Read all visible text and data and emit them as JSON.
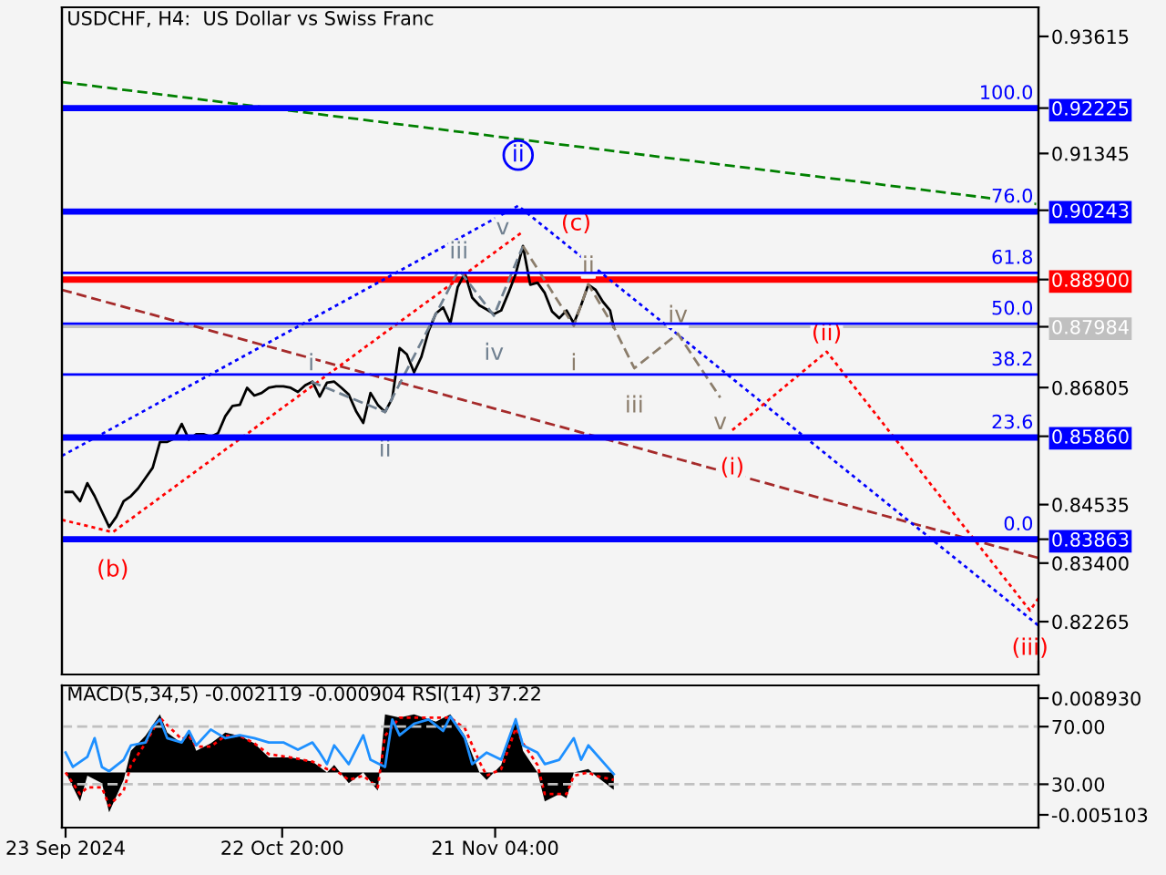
{
  "chart_data": [
    {
      "type": "line",
      "title": "USDCHF, H4:  US Dollar vs Swiss Franc",
      "xlim": [
        "2024-09-22T12:00",
        "2025-02-04T00:00"
      ],
      "ylim": [
        0.8124,
        0.9418
      ],
      "y2lim": [
        -31.37,
        123.39
      ],
      "yticks": [
        0.93615,
        0.91345,
        {
          "value": 0.92225,
          "label": "0.92225"
        },
        {
          "value": 0.90243,
          "label": "0.90243"
        },
        {
          "value": 0.889,
          "label": "0.88900"
        },
        {
          "value": 0.87984,
          "label": "0.87984"
        },
        0.86805,
        {
          "value": 0.8586,
          "label": "0.85860"
        },
        0.84535,
        {
          "value": 0.83863,
          "label": "0.83863"
        },
        {
          "value": 0.834,
          "label": "0.83400"
        },
        0.82265
      ],
      "tick_labels": "y",
      "grid": false,
      "legend": false,
      "ref_lines": [
        {
          "axis": "y2",
          "value": 100,
          "label": "100.0",
          "color": "#0000ff",
          "line_style": "solid"
        },
        {
          "axis": "y2",
          "value": 76,
          "label": "76.0",
          "color": "#0000ff",
          "line_style": "solid"
        },
        {
          "axis": "y2",
          "value": 61.8,
          "label": "61.8",
          "color": "#0000ff",
          "line_style": "solid"
        },
        {
          "axis": "y",
          "value": 0.889,
          "color": "#ff0000",
          "line_style": "solid"
        },
        {
          "axis": "y2",
          "value": 50,
          "label": "50.0",
          "color": "#0000ff",
          "line_style": "solid"
        },
        {
          "axis": "y",
          "value": 0.87984,
          "color": "#c0c0c0",
          "line_style": "solid"
        },
        {
          "axis": "y2",
          "value": 38.2,
          "label": "38.2",
          "color": "#0000ff",
          "line_style": "solid"
        },
        {
          "axis": "y2",
          "value": 23.6,
          "label": "23.6",
          "color": "#0000ff",
          "line_style": "solid"
        },
        {
          "axis": "y2",
          "value": 0,
          "label": "0.0",
          "color": "#0000ff",
          "line_style": "solid"
        }
      ],
      "series": [
        {
          "color": "#000000",
          "line_style": "solid",
          "x": [
            "2024-09-23",
            "2024-09-24",
            "2024-09-25",
            "2024-09-26",
            "2024-09-27",
            "2024-09-28",
            "2024-09-29",
            "2024-09-30",
            "2024-10-01",
            "2024-10-02",
            "2024-10-03",
            "2024-10-04",
            "2024-10-05",
            "2024-10-06",
            "2024-10-07",
            "2024-10-08",
            "2024-10-09",
            "2024-10-10",
            "2024-10-11",
            "2024-10-12",
            "2024-10-13",
            "2024-10-14",
            "2024-10-15",
            "2024-10-16",
            "2024-10-17",
            "2024-10-18",
            "2024-10-19",
            "2024-10-20",
            "2024-10-21",
            "2024-10-22",
            "2024-10-23",
            "2024-10-24",
            "2024-10-25",
            "2024-10-26",
            "2024-10-27",
            "2024-10-28",
            "2024-10-29",
            "2024-10-30",
            "2024-10-31",
            "2024-11-01",
            "2024-11-02",
            "2024-11-03",
            "2024-11-04",
            "2024-11-05",
            "2024-11-06",
            "2024-11-07",
            "2024-11-08",
            "2024-11-09",
            "2024-11-10",
            "2024-11-11",
            "2024-11-12",
            "2024-11-13",
            "2024-11-14",
            "2024-11-15",
            "2024-11-16",
            "2024-11-17",
            "2024-11-18",
            "2024-11-19",
            "2024-11-20",
            "2024-11-21",
            "2024-11-22",
            "2024-11-23",
            "2024-11-24",
            "2024-11-25",
            "2024-11-26",
            "2024-11-27",
            "2024-11-28",
            "2024-11-29",
            "2024-11-30",
            "2024-12-01",
            "2024-12-02",
            "2024-12-03",
            "2024-12-04",
            "2024-12-05",
            "2024-12-06",
            "2024-12-07",
            "2024-12-07T12:00"
          ],
          "values": [
            0.8478,
            0.8478,
            0.846,
            0.8495,
            0.847,
            0.844,
            0.841,
            0.843,
            0.846,
            0.847,
            0.8485,
            0.8505,
            0.8525,
            0.8575,
            0.8575,
            0.8582,
            0.861,
            0.858,
            0.859,
            0.859,
            0.8585,
            0.8592,
            0.8625,
            0.8645,
            0.8647,
            0.868,
            0.8665,
            0.867,
            0.868,
            0.8683,
            0.8683,
            0.868,
            0.8672,
            0.8685,
            0.8692,
            0.8663,
            0.869,
            0.8692,
            0.868,
            0.8667,
            0.8635,
            0.8612,
            0.867,
            0.8647,
            0.8633,
            0.866,
            0.8757,
            0.8745,
            0.871,
            0.874,
            0.879,
            0.8824,
            0.8836,
            0.8805,
            0.8875,
            0.8902,
            0.8855,
            0.884,
            0.8832,
            0.8823,
            0.883,
            0.8864,
            0.8901,
            0.8955,
            0.888,
            0.8884,
            0.8864,
            0.8828,
            0.8815,
            0.883,
            0.8805,
            0.884,
            0.888,
            0.887,
            0.8847,
            0.883,
            0.8798
          ]
        },
        {
          "color": "#008000",
          "line_style": "dashed",
          "x": [
            "2024-09-22T12:00",
            "2025-02-04T00:00"
          ],
          "values": [
            0.9273,
            0.9036
          ]
        },
        {
          "color": "#a52a2a",
          "line_style": "dashed",
          "x": [
            "2024-09-22T12:00",
            "2025-02-04T00:00"
          ],
          "values": [
            0.887,
            0.835
          ]
        },
        {
          "color": "#0000ff",
          "line_style": "dotted",
          "x": [
            "2024-09-22T12:00",
            "2024-11-24T08:00",
            "2025-02-04T00:00"
          ],
          "values": [
            0.8548,
            0.9033,
            0.8219
          ],
          "value_labels": [
            null,
            "ii",
            null
          ]
        },
        {
          "color": "#ff0000",
          "line_style": "dotted",
          "x": [
            "2024-09-22T12:00",
            "2024-09-29T12:00",
            "2024-11-25T00:00"
          ],
          "values": [
            0.8424,
            0.84,
            0.8983
          ],
          "value_labels": [
            null,
            "(b)",
            "(c)"
          ]
        },
        {
          "color": "#ff0000",
          "line_style": "dotted",
          "x": [
            "2024-12-23T20:00",
            "2025-01-05T20:00",
            "2025-02-02T20:00",
            "2025-02-04T00:00"
          ],
          "values": [
            0.8598,
            0.875,
            0.8248,
            0.8272
          ],
          "value_labels": [
            "(i)",
            "(ii)",
            "(iii)",
            null
          ]
        },
        {
          "color": "#708090",
          "line_style": "dashed",
          "x": [
            "2024-10-26T20:00",
            "2024-11-06T00:00",
            "2024-11-16T04:00",
            "2024-11-21T00:00",
            "2024-11-25T00:00"
          ],
          "values": [
            0.8692,
            0.8633,
            0.8909,
            0.882,
            0.8955
          ],
          "value_labels": [
            "i",
            "ii",
            "iii",
            "iv",
            "v"
          ]
        },
        {
          "color": "#8b7d6b",
          "line_style": "dashed",
          "x": [
            "2024-11-25T00:00",
            "2024-12-02T00:00",
            "2024-12-04T00:00",
            "2024-12-07T12:00",
            "2024-12-10T08:00",
            "2024-12-16T08:00",
            "2024-12-22T04:00"
          ],
          "values": [
            0.8955,
            0.88,
            0.8881,
            0.8798,
            0.8718,
            0.8785,
            0.8661
          ],
          "value_labels": [
            null,
            "i",
            "ii",
            null,
            "iii",
            "iv",
            "v"
          ]
        }
      ]
    },
    {
      "type": "line",
      "title": "MACD(5,34,5) -0.002119 -0.000904 RSI(14) 37.22",
      "xlim": [
        "2024-09-22T12:00",
        "2025-02-04T00:00"
      ],
      "ylim": [
        -0.00664,
        0.01047
      ],
      "xticks": [
        {
          "value": "2024-09-23T00:00",
          "label": "23 Sep 2024"
        },
        {
          "value": "2024-10-22T20:00",
          "label": "22 Oct 20:00"
        },
        {
          "value": "2024-11-21T04:00",
          "label": "21 Nov 04:00"
        }
      ],
      "yticks": [
        {
          "value": 0.00893,
          "label": "0.008930"
        },
        {
          "value": -0.005103,
          "label": "-0.005103"
        }
      ],
      "y2lim": [
        -0.1,
        98.6
      ],
      "y2ticks": [
        {
          "value": 70,
          "label": "70.00"
        },
        {
          "value": 30,
          "label": "30.00"
        }
      ],
      "grid": false,
      "legend": false,
      "ref_lines": [
        {
          "axis": "y2",
          "value": 70,
          "color": "#c0c0c0",
          "line_style": "dashed"
        },
        {
          "axis": "y2",
          "value": 30,
          "color": "#c0c0c0",
          "line_style": "dashed"
        }
      ],
      "series": [
        {
          "type": "area",
          "color": "#000000",
          "x": [
            "2024-09-23",
            "2024-09-25",
            "2024-09-26",
            "2024-09-28",
            "2024-09-29",
            "2024-10-01",
            "2024-10-02",
            "2024-10-04",
            "2024-10-06",
            "2024-10-07",
            "2024-10-09",
            "2024-10-10",
            "2024-10-11",
            "2024-10-13",
            "2024-10-15",
            "2024-10-17",
            "2024-10-19",
            "2024-10-21",
            "2024-10-24",
            "2024-10-27",
            "2024-10-29",
            "2024-10-30",
            "2024-11-01",
            "2024-11-03",
            "2024-11-05",
            "2024-11-06",
            "2024-11-08",
            "2024-11-10",
            "2024-11-13",
            "2024-11-15",
            "2024-11-17",
            "2024-11-19",
            "2024-11-20",
            "2024-11-22",
            "2024-11-24",
            "2024-11-25",
            "2024-11-27",
            "2024-11-28",
            "2024-11-30",
            "2024-12-01",
            "2024-12-02",
            "2024-12-04",
            "2024-12-05",
            "2024-12-07T12:00"
          ],
          "values": [
            0,
            -0.0035,
            -0.0004,
            -0.0013,
            -0.0048,
            -0.0009,
            0.0026,
            0.0044,
            0.007,
            0.0048,
            0.0035,
            0.0048,
            0.0026,
            0.0035,
            0.0048,
            0.0044,
            0.0035,
            0.0018,
            0.0018,
            0.0013,
            0,
            0.0009,
            -0.0013,
            0,
            -0.0022,
            0.007,
            0.0066,
            0.007,
            0.0061,
            0.007,
            0.0044,
            0,
            -0.0009,
            0.0009,
            0.0066,
            0.0026,
            0,
            -0.0035,
            -0.0026,
            -0.0031,
            0,
            0.0004,
            -0.0004,
            -0.0021
          ]
        },
        {
          "type": "line",
          "color": "#ff0000",
          "line_style": "dotted",
          "x": [
            "2024-09-23",
            "2024-09-25",
            "2024-09-26",
            "2024-09-28",
            "2024-09-29",
            "2024-10-01",
            "2024-10-02",
            "2024-10-04",
            "2024-10-06",
            "2024-10-07",
            "2024-10-09",
            "2024-10-10",
            "2024-10-11",
            "2024-10-13",
            "2024-10-15",
            "2024-10-17",
            "2024-10-19",
            "2024-10-21",
            "2024-10-24",
            "2024-10-27",
            "2024-10-29",
            "2024-10-30",
            "2024-11-01",
            "2024-11-03",
            "2024-11-05",
            "2024-11-06",
            "2024-11-08",
            "2024-11-10",
            "2024-11-13",
            "2024-11-15",
            "2024-11-17",
            "2024-11-19",
            "2024-11-20",
            "2024-11-22",
            "2024-11-24",
            "2024-11-25",
            "2024-11-27",
            "2024-11-28",
            "2024-11-30",
            "2024-12-01",
            "2024-12-02",
            "2024-12-04",
            "2024-12-05",
            "2024-12-07T12:00"
          ],
          "values": [
            0,
            -0.0026,
            -0.0018,
            -0.0018,
            -0.004,
            -0.0022,
            0.0009,
            0.0035,
            0.0066,
            0.0057,
            0.004,
            0.0044,
            0.0031,
            0.0031,
            0.0044,
            0.0044,
            0.0035,
            0.0022,
            0.0018,
            0.0013,
            0.0004,
            0.0004,
            -0.0009,
            -0.0004,
            -0.0018,
            0.0044,
            0.0066,
            0.0066,
            0.0066,
            0.0066,
            0.0053,
            0.0013,
            -0.0004,
            0.0004,
            0.0053,
            0.0035,
            0.0009,
            -0.0026,
            -0.0026,
            -0.0026,
            -0.0004,
            0,
            -0.0004,
            -0.0009
          ]
        },
        {
          "type": "line",
          "color": "#1e90ff",
          "line_style": "solid",
          "axis": "y2",
          "x": [
            "2024-09-23",
            "2024-09-24",
            "2024-09-26",
            "2024-09-27",
            "2024-09-28",
            "2024-09-29",
            "2024-10-01",
            "2024-10-02",
            "2024-10-04",
            "2024-10-05",
            "2024-10-06",
            "2024-10-07",
            "2024-10-09",
            "2024-10-10",
            "2024-10-11",
            "2024-10-13",
            "2024-10-15",
            "2024-10-17",
            "2024-10-19",
            "2024-10-21",
            "2024-10-23",
            "2024-10-25",
            "2024-10-27",
            "2024-10-28",
            "2024-10-29",
            "2024-10-30",
            "2024-11-01",
            "2024-11-03",
            "2024-11-04",
            "2024-11-06",
            "2024-11-07",
            "2024-11-08",
            "2024-11-10",
            "2024-11-12",
            "2024-11-14",
            "2024-11-15",
            "2024-11-17",
            "2024-11-18",
            "2024-11-20",
            "2024-11-22",
            "2024-11-24",
            "2024-11-25",
            "2024-11-27",
            "2024-11-28",
            "2024-11-30",
            "2024-12-02",
            "2024-12-03",
            "2024-12-04",
            "2024-12-07T12:00"
          ],
          "values": [
            52,
            42,
            49,
            62,
            42,
            39,
            47,
            57,
            59,
            70,
            75,
            62,
            59,
            67,
            57,
            68,
            62,
            64,
            62,
            59,
            59,
            54,
            59,
            52,
            44,
            57,
            44,
            64,
            47,
            42,
            75,
            64,
            72,
            75,
            67,
            77,
            62,
            44,
            52,
            47,
            75,
            57,
            52,
            44,
            47,
            62,
            47,
            57,
            37
          ]
        }
      ]
    }
  ]
}
